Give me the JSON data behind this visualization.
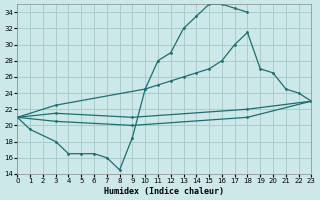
{
  "xlabel": "Humidex (Indice chaleur)",
  "bg_color": "#cce8e8",
  "grid_color": "#aacccc",
  "line_color": "#1a7070",
  "xlim": [
    0,
    23
  ],
  "ylim": [
    14,
    35
  ],
  "yticks": [
    14,
    16,
    18,
    20,
    22,
    24,
    26,
    28,
    30,
    32,
    34
  ],
  "xticks": [
    0,
    1,
    2,
    3,
    4,
    5,
    6,
    7,
    8,
    9,
    10,
    11,
    12,
    13,
    14,
    15,
    16,
    17,
    18,
    19,
    20,
    21,
    22,
    23
  ],
  "line1_x": [
    0,
    1,
    3,
    4,
    5,
    6,
    7,
    8,
    9,
    10,
    11,
    12,
    13,
    14,
    15,
    16,
    17,
    18
  ],
  "line1_y": [
    21.0,
    19.5,
    18.0,
    16.5,
    16.5,
    16.5,
    16.0,
    14.5,
    18.5,
    24.5,
    28.0,
    29.0,
    32.0,
    33.5,
    35.0,
    35.0,
    34.5,
    34.0
  ],
  "line2_x": [
    0,
    3,
    10,
    11,
    12,
    13,
    14,
    15,
    16,
    17,
    18,
    19,
    20,
    21,
    22,
    23
  ],
  "line2_y": [
    21.0,
    22.5,
    24.5,
    25.0,
    25.5,
    26.0,
    26.5,
    27.0,
    28.0,
    30.0,
    31.5,
    27.0,
    26.5,
    24.5,
    24.0,
    23.0
  ],
  "line3_x": [
    0,
    3,
    9,
    18,
    23
  ],
  "line3_y": [
    21.0,
    21.5,
    21.0,
    22.0,
    23.0
  ],
  "line4_x": [
    0,
    3,
    9,
    18,
    23
  ],
  "line4_y": [
    21.0,
    20.5,
    20.0,
    21.0,
    23.0
  ]
}
